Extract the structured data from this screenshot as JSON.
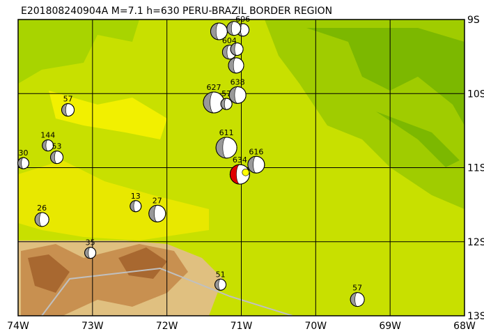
{
  "title": "E201808240904A M=7.1 h=630 PERU-BRAZIL BORDER REGION",
  "lon_range": [
    -74,
    -68
  ],
  "lat_range": [
    -9,
    -13
  ],
  "lon_ticks": [
    {
      "value": -74,
      "label": "74W"
    },
    {
      "value": -73,
      "label": "73W"
    },
    {
      "value": -72,
      "label": "72W"
    },
    {
      "value": -71,
      "label": "71W"
    },
    {
      "value": -70,
      "label": "70W"
    },
    {
      "value": -69,
      "label": "69W"
    },
    {
      "value": -68,
      "label": "68W"
    }
  ],
  "lat_ticks": [
    {
      "value": -9,
      "label": "9S"
    },
    {
      "value": -10,
      "label": "10S"
    },
    {
      "value": -11,
      "label": "11S"
    },
    {
      "value": -12,
      "label": "12S"
    },
    {
      "value": -13,
      "label": "13S"
    }
  ],
  "events": [
    {
      "label": "57",
      "lon": -73.33,
      "lat": -10.22,
      "size": 9
    },
    {
      "label": "144",
      "lon": -73.6,
      "lat": -10.7,
      "size": 8
    },
    {
      "label": "53",
      "lon": -73.48,
      "lat": -10.86,
      "size": 9
    },
    {
      "label": "30",
      "lon": -73.93,
      "lat": -10.94,
      "size": 8
    },
    {
      "label": "26",
      "lon": -73.68,
      "lat": -11.7,
      "size": 10
    },
    {
      "label": "13",
      "lon": -72.42,
      "lat": -11.52,
      "size": 8
    },
    {
      "label": "27",
      "lon": -72.13,
      "lat": -11.62,
      "size": 12
    },
    {
      "label": "35",
      "lon": -73.03,
      "lat": -12.15,
      "size": 8
    },
    {
      "label": "51",
      "lon": -71.28,
      "lat": -12.58,
      "size": 8
    },
    {
      "label": "57",
      "lon": -69.44,
      "lat": -12.78,
      "size": 10
    },
    {
      "label": "611",
      "lon": -71.2,
      "lat": -10.73,
      "size": 15
    },
    {
      "label": "616",
      "lon": -70.8,
      "lat": -10.96,
      "size": 12
    },
    {
      "label": "627",
      "lon": -71.37,
      "lat": -10.12,
      "size": 15
    },
    {
      "label": "638",
      "lon": -71.05,
      "lat": -10.02,
      "size": 12
    },
    {
      "label": "57",
      "lon": -71.2,
      "lat": -10.14,
      "size": 8
    },
    {
      "label": "606",
      "lon": -70.98,
      "lat": -9.14,
      "size": 9
    },
    {
      "label": "604",
      "lon": -71.16,
      "lat": -9.44,
      "size": 10
    },
    {
      "lon": -71.3,
      "lat": -9.16,
      "size": 12
    },
    {
      "lon": -71.1,
      "lat": -9.12,
      "size": 10
    },
    {
      "lon": -71.06,
      "lat": -9.4,
      "size": 9
    },
    {
      "lon": -71.07,
      "lat": -9.62,
      "size": 11
    },
    {
      "label": "634",
      "lon": -71.02,
      "lat": -11.09,
      "size": 14,
      "main": true
    }
  ]
}
